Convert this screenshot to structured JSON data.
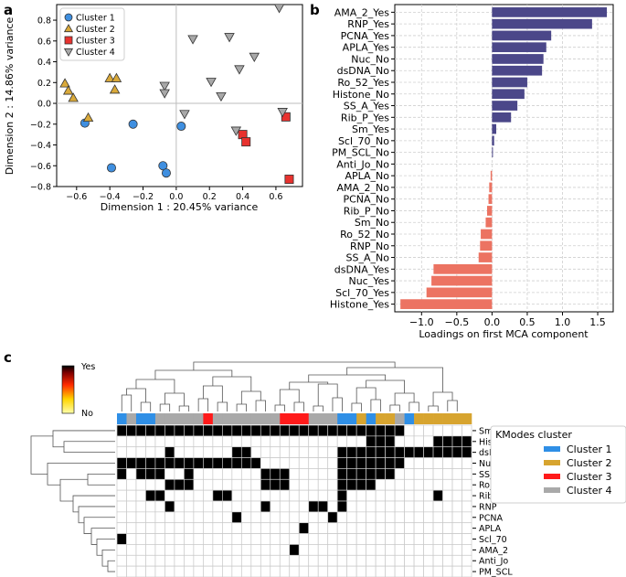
{
  "chart_data": [
    {
      "panel": "a",
      "type": "scatter",
      "xlabel": "Dimension 1 : 20.45% variance",
      "ylabel": "Dimension 2 : 14.86% variance",
      "xlim": [
        -0.72,
        0.76
      ],
      "ylim": [
        -0.8,
        0.95
      ],
      "xticks": [
        -0.6,
        -0.4,
        -0.2,
        0.0,
        0.2,
        0.4,
        0.6
      ],
      "xtick_labels": [
        "−0.6",
        "−0.4",
        "−0.2",
        "0.0",
        "0.2",
        "0.4",
        "0.6"
      ],
      "yticks": [
        -0.8,
        -0.6,
        -0.4,
        -0.2,
        0.0,
        0.2,
        0.4,
        0.6,
        0.8
      ],
      "ytick_labels": [
        "−0.8",
        "−0.6",
        "−0.4",
        "−0.2",
        "0.0",
        "0.2",
        "0.4",
        "0.6",
        "0.8"
      ],
      "legend_position": "top-left",
      "series": [
        {
          "name": "Cluster 1",
          "marker": "circle",
          "color": "#3f8fe0",
          "points": [
            [
              -0.55,
              -0.19
            ],
            [
              -0.26,
              -0.2
            ],
            [
              -0.39,
              -0.62
            ],
            [
              -0.08,
              -0.6
            ],
            [
              -0.06,
              -0.67
            ],
            [
              0.03,
              -0.22
            ]
          ]
        },
        {
          "name": "Cluster 2",
          "marker": "triangle-up",
          "color": "#d9a93a",
          "points": [
            [
              -0.67,
              0.19
            ],
            [
              -0.65,
              0.12
            ],
            [
              -0.62,
              0.05
            ],
            [
              -0.4,
              0.24
            ],
            [
              -0.36,
              0.24
            ],
            [
              -0.37,
              0.13
            ],
            [
              -0.53,
              -0.14
            ]
          ]
        },
        {
          "name": "Cluster 3",
          "marker": "square",
          "color": "#e8322f",
          "points": [
            [
              0.4,
              -0.3
            ],
            [
              0.42,
              -0.37
            ],
            [
              0.66,
              -0.13
            ],
            [
              0.68,
              -0.73
            ]
          ]
        },
        {
          "name": "Cluster 4",
          "marker": "triangle-down",
          "color": "#a8a8a8",
          "points": [
            [
              -0.07,
              0.17
            ],
            [
              -0.07,
              0.1
            ],
            [
              0.05,
              -0.1
            ],
            [
              0.1,
              0.62
            ],
            [
              0.21,
              0.21
            ],
            [
              0.27,
              0.07
            ],
            [
              0.32,
              0.64
            ],
            [
              0.38,
              0.33
            ],
            [
              0.47,
              0.45
            ],
            [
              0.62,
              0.92
            ],
            [
              0.64,
              -0.08
            ],
            [
              0.36,
              -0.26
            ]
          ]
        }
      ]
    },
    {
      "panel": "b",
      "type": "bar",
      "orientation": "horizontal",
      "xlabel": "Loadings on first MCA component",
      "xlim": [
        -1.38,
        1.72
      ],
      "xticks": [
        -1.0,
        -0.5,
        0.0,
        0.5,
        1.0,
        1.5
      ],
      "xtick_labels": [
        "−1.0",
        "−0.5",
        "0.0",
        "0.5",
        "1.0",
        "1.5"
      ],
      "positive_color": "#4b4789",
      "negative_color": "#ec7362",
      "categories": [
        "AMA_2_Yes",
        "RNP_Yes",
        "PCNA_Yes",
        "APLA_Yes",
        "Nuc_No",
        "dsDNA_No",
        "Ro_52_Yes",
        "Histone_No",
        "SS_A_Yes",
        "Rib_P_Yes",
        "Sm_Yes",
        "Scl_70_No",
        "PM_SCL_No",
        "Anti_Jo_No",
        "APLA_No",
        "AMA_2_No",
        "PCNA_No",
        "Rib_P_No",
        "Sm_No",
        "Ro_52_No",
        "RNP_No",
        "SS_A_No",
        "dsDNA_Yes",
        "Nuc_Yes",
        "Scl_70_Yes",
        "Histone_Yes"
      ],
      "values": [
        1.63,
        1.42,
        0.84,
        0.77,
        0.73,
        0.71,
        0.5,
        0.46,
        0.36,
        0.27,
        0.06,
        0.03,
        0.01,
        0.0,
        -0.02,
        -0.04,
        -0.05,
        -0.07,
        -0.09,
        -0.16,
        -0.17,
        -0.19,
        -0.83,
        -0.86,
        -0.93,
        -1.3
      ]
    },
    {
      "panel": "c",
      "type": "heatmap",
      "colorbar_max_label": "Yes",
      "colorbar_min_label": "No",
      "legend_title": "KModes cluster",
      "clusters": [
        {
          "name": "Cluster 1",
          "color": "#2f8fe6"
        },
        {
          "name": "Cluster 2",
          "color": "#d7a42f"
        },
        {
          "name": "Cluster 3",
          "color": "#ff1a1a"
        },
        {
          "name": "Cluster 4",
          "color": "#a9a9a9"
        }
      ],
      "rows": [
        "Sm",
        "Histone",
        "dsDNA",
        "Nuc",
        "SS_A",
        "Ro_52",
        "Rib_P",
        "RNP",
        "PCNA",
        "APLA",
        "Scl_70",
        "AMA_2",
        "Anti_Jo",
        "PM_SCL"
      ],
      "column_clusters": [
        1,
        4,
        1,
        1,
        4,
        4,
        4,
        4,
        4,
        3,
        4,
        4,
        4,
        4,
        4,
        4,
        4,
        3,
        3,
        3,
        4,
        4,
        4,
        1,
        1,
        2,
        1,
        2,
        2,
        4,
        1,
        2,
        2,
        2,
        2,
        2,
        2
      ],
      "matrix": [
        [
          1,
          1,
          1,
          1,
          1,
          1,
          1,
          1,
          1,
          1,
          1,
          1,
          1,
          1,
          1,
          1,
          1,
          1,
          1,
          1,
          1,
          1,
          1,
          1,
          1,
          1,
          1,
          1,
          1,
          1,
          0,
          0,
          0,
          0,
          0,
          0,
          0
        ],
        [
          0,
          0,
          0,
          0,
          0,
          0,
          0,
          0,
          0,
          0,
          0,
          0,
          0,
          0,
          0,
          0,
          0,
          0,
          0,
          0,
          0,
          0,
          0,
          0,
          0,
          0,
          1,
          1,
          1,
          0,
          0,
          0,
          0,
          1,
          1,
          1,
          1
        ],
        [
          0,
          0,
          0,
          0,
          0,
          1,
          0,
          0,
          0,
          0,
          0,
          0,
          1,
          1,
          0,
          0,
          0,
          0,
          0,
          0,
          0,
          0,
          0,
          1,
          1,
          1,
          1,
          1,
          1,
          1,
          1,
          1,
          1,
          1,
          1,
          1,
          1
        ],
        [
          1,
          1,
          1,
          1,
          1,
          1,
          1,
          1,
          1,
          1,
          1,
          1,
          1,
          1,
          1,
          0,
          0,
          0,
          0,
          0,
          0,
          0,
          0,
          1,
          1,
          1,
          1,
          1,
          1,
          1,
          0,
          0,
          0,
          0,
          0,
          0,
          0
        ],
        [
          1,
          0,
          1,
          1,
          1,
          0,
          0,
          1,
          0,
          0,
          0,
          0,
          0,
          0,
          0,
          1,
          1,
          1,
          0,
          0,
          0,
          0,
          0,
          1,
          1,
          1,
          1,
          1,
          1,
          0,
          0,
          0,
          0,
          0,
          0,
          0,
          0
        ],
        [
          0,
          0,
          0,
          0,
          0,
          1,
          1,
          1,
          0,
          0,
          0,
          0,
          0,
          0,
          0,
          1,
          1,
          1,
          0,
          0,
          0,
          0,
          0,
          1,
          1,
          1,
          1,
          0,
          0,
          0,
          0,
          0,
          0,
          0,
          0,
          0,
          0
        ],
        [
          0,
          0,
          0,
          1,
          1,
          0,
          0,
          0,
          0,
          0,
          1,
          1,
          0,
          0,
          0,
          0,
          0,
          0,
          0,
          0,
          0,
          0,
          0,
          1,
          0,
          0,
          0,
          0,
          0,
          0,
          0,
          0,
          0,
          1,
          0,
          0,
          0
        ],
        [
          0,
          0,
          0,
          0,
          0,
          1,
          0,
          0,
          0,
          0,
          0,
          0,
          0,
          0,
          0,
          1,
          0,
          0,
          0,
          0,
          1,
          1,
          0,
          1,
          0,
          0,
          0,
          0,
          0,
          0,
          0,
          0,
          0,
          0,
          0,
          0,
          0
        ],
        [
          0,
          0,
          0,
          0,
          0,
          0,
          0,
          0,
          0,
          0,
          0,
          0,
          1,
          0,
          0,
          0,
          0,
          0,
          0,
          0,
          0,
          0,
          1,
          0,
          0,
          0,
          0,
          0,
          0,
          0,
          0,
          0,
          0,
          0,
          0,
          0,
          0
        ],
        [
          0,
          0,
          0,
          0,
          0,
          0,
          0,
          0,
          0,
          0,
          0,
          0,
          0,
          0,
          0,
          0,
          0,
          0,
          0,
          1,
          0,
          0,
          0,
          0,
          0,
          0,
          0,
          0,
          0,
          0,
          0,
          0,
          0,
          0,
          0,
          0,
          0
        ],
        [
          1,
          0,
          0,
          0,
          0,
          0,
          0,
          0,
          0,
          0,
          0,
          0,
          0,
          0,
          0,
          0,
          0,
          0,
          0,
          0,
          0,
          0,
          0,
          0,
          0,
          0,
          0,
          0,
          0,
          0,
          0,
          0,
          0,
          0,
          0,
          0,
          0
        ],
        [
          0,
          0,
          0,
          0,
          0,
          0,
          0,
          0,
          0,
          0,
          0,
          0,
          0,
          0,
          0,
          0,
          0,
          0,
          1,
          0,
          0,
          0,
          0,
          0,
          0,
          0,
          0,
          0,
          0,
          0,
          0,
          0,
          0,
          0,
          0,
          0,
          0
        ],
        [
          0,
          0,
          0,
          0,
          0,
          0,
          0,
          0,
          0,
          0,
          0,
          0,
          0,
          0,
          0,
          0,
          0,
          0,
          0,
          0,
          0,
          0,
          0,
          0,
          0,
          0,
          0,
          0,
          0,
          0,
          0,
          0,
          0,
          0,
          0,
          0,
          0
        ],
        [
          0,
          0,
          0,
          0,
          0,
          0,
          0,
          0,
          0,
          0,
          0,
          0,
          0,
          0,
          0,
          0,
          0,
          0,
          0,
          0,
          0,
          0,
          0,
          0,
          0,
          0,
          0,
          0,
          0,
          0,
          0,
          0,
          0,
          0,
          0,
          0,
          0
        ]
      ]
    }
  ],
  "panel_letters": {
    "a": "a",
    "b": "b",
    "c": "c"
  }
}
